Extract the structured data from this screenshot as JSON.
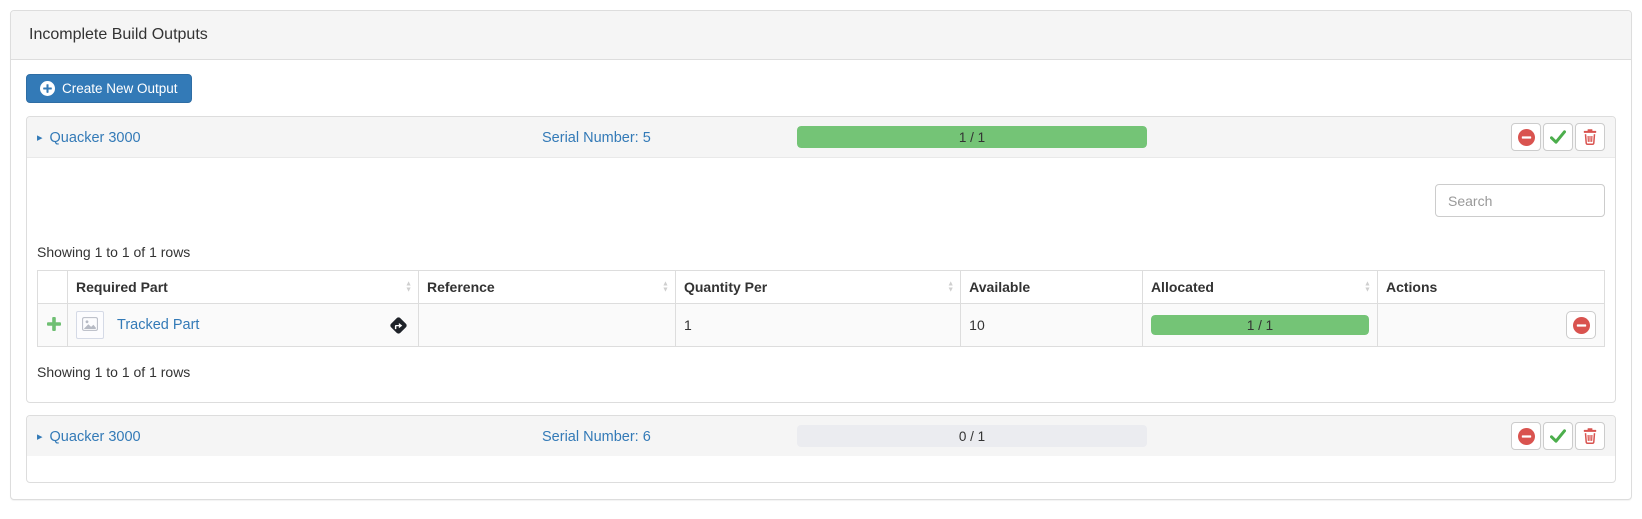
{
  "panel": {
    "title": "Incomplete Build Outputs"
  },
  "toolbar": {
    "create_button_label": "Create New Output"
  },
  "outputs": [
    {
      "name": "Quacker 3000",
      "serial_label": "Serial Number: 5",
      "progress": {
        "label": "1 / 1",
        "percent": 100
      }
    },
    {
      "name": "Quacker 3000",
      "serial_label": "Serial Number: 6",
      "progress": {
        "label": "0 / 1",
        "percent": 0
      }
    }
  ],
  "allocation_table": {
    "search_placeholder": "Search",
    "showing_top": "Showing 1 to 1 of 1 rows",
    "showing_bottom": "Showing 1 to 1 of 1 rows",
    "columns": [
      {
        "label": "Required Part",
        "sortable": true
      },
      {
        "label": "Reference",
        "sortable": true
      },
      {
        "label": "Quantity Per",
        "sortable": true
      },
      {
        "label": "Available",
        "sortable": false
      },
      {
        "label": "Allocated",
        "sortable": true
      },
      {
        "label": "Actions",
        "sortable": false
      }
    ],
    "rows": [
      {
        "part": "Tracked Part",
        "reference": "",
        "quantity_per": "1",
        "available": "10",
        "allocated": {
          "label": "1 / 1",
          "percent": 100
        }
      }
    ]
  },
  "icons": {
    "caret": "▸",
    "sort_up": "▲",
    "sort_down": "▼"
  },
  "colors": {
    "accent": "#337ab7",
    "accent-dark": "#2e6da4",
    "green-fill": "#74c476",
    "track": "#ebecf0",
    "danger": "#d9534f",
    "success": "#4cae4c",
    "border": "#dddddd",
    "head-bg": "#f5f5f5"
  }
}
